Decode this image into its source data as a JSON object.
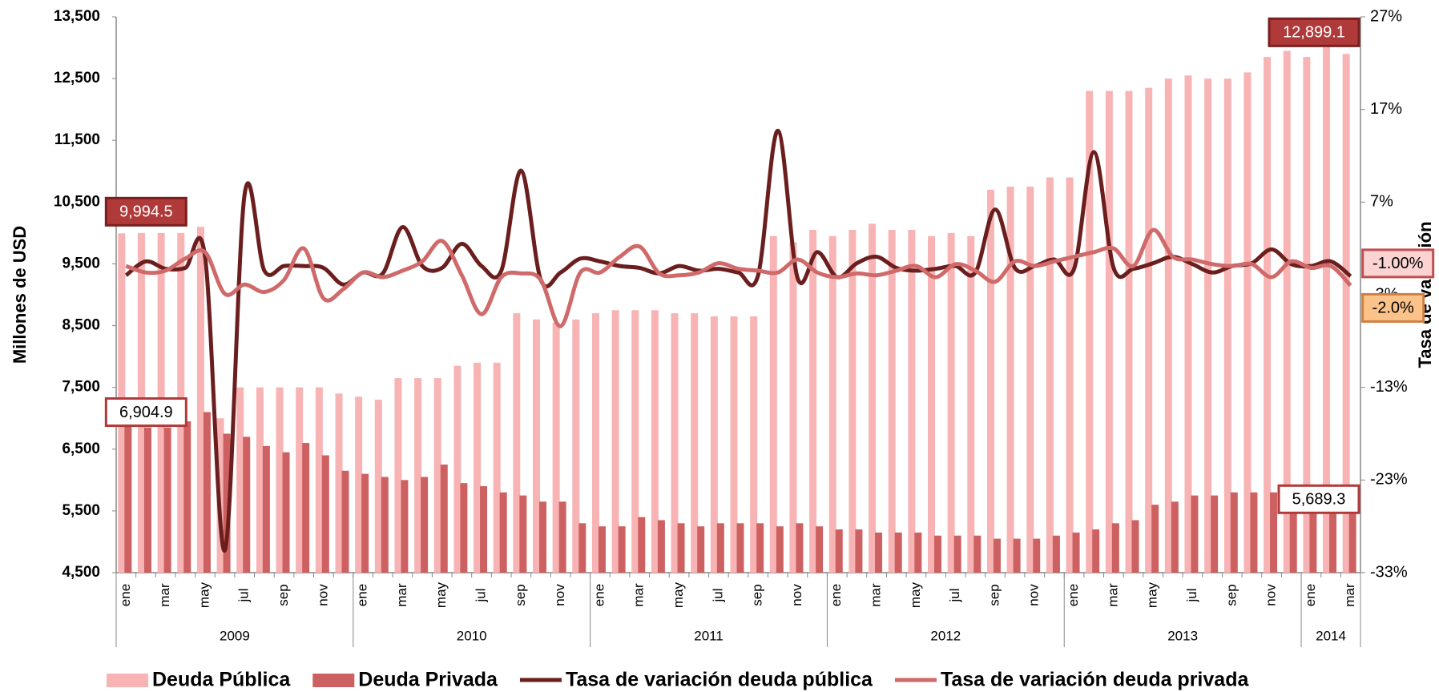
{
  "chart_data": {
    "type": "bar-line",
    "ylabel": "Millones de  USD",
    "y2label": "Tasa de variación",
    "categories": [
      "ene",
      null,
      "mar",
      null,
      "may",
      null,
      "jul",
      null,
      "sep",
      null,
      "nov",
      null,
      "ene",
      null,
      "mar",
      null,
      "may",
      null,
      "jul",
      null,
      "sep",
      null,
      "nov",
      null,
      "ene",
      null,
      "mar",
      null,
      "may",
      null,
      "jul",
      null,
      "sep",
      null,
      "nov",
      null,
      "ene",
      null,
      "mar",
      null,
      "may",
      null,
      "jul",
      null,
      "sep",
      null,
      "nov",
      null,
      "ene",
      null,
      "mar",
      null,
      "may",
      null,
      "jul",
      null,
      "sep",
      null,
      "nov",
      null,
      "ene",
      null,
      "mar"
    ],
    "years": [
      "2009",
      "2010",
      "2011",
      "2012",
      "2013",
      "2014"
    ],
    "ylim": [
      4500,
      13500
    ],
    "yticks": [
      {
        "value": 4500,
        "label": "4,500"
      },
      {
        "value": 5500,
        "label": "5,500"
      },
      {
        "value": 6500,
        "label": "6,500"
      },
      {
        "value": 7500,
        "label": "7,500"
      },
      {
        "value": 8500,
        "label": "8,500"
      },
      {
        "value": 9500,
        "label": "9,500"
      },
      {
        "value": 10500,
        "label": "10,500"
      },
      {
        "value": 11500,
        "label": "11,500"
      },
      {
        "value": 12500,
        "label": "12,500"
      },
      {
        "value": 13500,
        "label": "13,500"
      }
    ],
    "y2lim": [
      -33,
      27
    ],
    "y2ticks": [
      {
        "value": -33,
        "label": "-33%"
      },
      {
        "value": -23,
        "label": "-23%"
      },
      {
        "value": -13,
        "label": "-13%"
      },
      {
        "value": -3,
        "label": "-3%"
      },
      {
        "value": 7,
        "label": "7%"
      },
      {
        "value": 17,
        "label": "17%"
      },
      {
        "value": 27,
        "label": "27%"
      }
    ],
    "series": [
      {
        "name": "Deuda Pública",
        "kind": "bar",
        "color": "#f8b4b4",
        "values": [
          9994.5,
          10000,
          10000,
          10000,
          10100,
          7000,
          7500,
          7500,
          7500,
          7500,
          7500,
          7400,
          7350,
          7300,
          7650,
          7650,
          7650,
          7850,
          7900,
          7900,
          8700,
          8600,
          8550,
          8600,
          8700,
          8750,
          8750,
          8750,
          8700,
          8700,
          8650,
          8650,
          8650,
          9950,
          9850,
          10050,
          9950,
          10050,
          10150,
          10050,
          10050,
          9950,
          10000,
          9950,
          10700,
          10750,
          10750,
          10900,
          10900,
          12300,
          12300,
          12300,
          12350,
          12500,
          12550,
          12500,
          12500,
          12600,
          12850,
          12950,
          12850,
          13050,
          12899.1
        ],
        "value_labels": [
          "9,994.5",
          null,
          null,
          null,
          null,
          null,
          null,
          null,
          null,
          null,
          null,
          null,
          null,
          null,
          null,
          null,
          null,
          null,
          null,
          null,
          null,
          null,
          null,
          null,
          null,
          null,
          null,
          null,
          null,
          null,
          null,
          null,
          null,
          null,
          null,
          null,
          null,
          null,
          null,
          null,
          null,
          null,
          null,
          null,
          null,
          null,
          null,
          null,
          null,
          null,
          null,
          null,
          null,
          null,
          null,
          null,
          null,
          null,
          null,
          null,
          null,
          null,
          "12,899.1"
        ]
      },
      {
        "name": "Deuda Privada",
        "kind": "bar",
        "color": "#cd6161",
        "values": [
          6904.9,
          6850,
          6850,
          6950,
          7100,
          6750,
          6700,
          6550,
          6450,
          6600,
          6400,
          6150,
          6100,
          6050,
          6000,
          6050,
          6250,
          5950,
          5900,
          5800,
          5750,
          5650,
          5650,
          5300,
          5250,
          5250,
          5400,
          5350,
          5300,
          5250,
          5300,
          5300,
          5300,
          5250,
          5300,
          5250,
          5200,
          5200,
          5150,
          5150,
          5150,
          5100,
          5100,
          5100,
          5050,
          5050,
          5050,
          5100,
          5150,
          5200,
          5300,
          5350,
          5600,
          5650,
          5750,
          5750,
          5800,
          5800,
          5800,
          5750,
          5700,
          5750,
          5689.3
        ],
        "value_labels": [
          "6,904.9",
          null,
          null,
          null,
          null,
          null,
          null,
          null,
          null,
          null,
          null,
          null,
          null,
          null,
          null,
          null,
          null,
          null,
          null,
          null,
          null,
          null,
          null,
          null,
          null,
          null,
          null,
          null,
          null,
          null,
          null,
          null,
          null,
          null,
          null,
          null,
          null,
          null,
          null,
          null,
          null,
          null,
          null,
          null,
          null,
          null,
          null,
          null,
          null,
          null,
          null,
          null,
          null,
          null,
          null,
          null,
          null,
          null,
          null,
          null,
          null,
          null,
          "5,689.3"
        ]
      },
      {
        "name": "Tasa de variación deuda pública",
        "kind": "line",
        "axis": "y2",
        "color": "#6b1e1e",
        "values": [
          -0.9,
          0.6,
          -0.2,
          -0.1,
          1.1,
          -30.6,
          7.8,
          -0.4,
          0.1,
          0.1,
          -0.1,
          -1.9,
          -0.6,
          -0.7,
          4.3,
          0.1,
          -0.1,
          2.5,
          0.1,
          -0.4,
          10.4,
          -1.4,
          -0.6,
          0.9,
          0.6,
          0.1,
          -0.1,
          -0.7,
          0.1,
          -0.4,
          -0.2,
          -0.6,
          -0.9,
          14.7,
          -1.2,
          1.6,
          -1.1,
          0.4,
          1.1,
          -0.1,
          -0.4,
          -0.2,
          0.1,
          -0.6,
          6.2,
          -0.1,
          0.1,
          0.8,
          -0.2,
          12.4,
          -0.1,
          -0.2,
          0.4,
          1.1,
          0.3,
          -0.6,
          0.1,
          0.4,
          1.9,
          0.3,
          0.1,
          0.6,
          -1
        ],
        "value_labels": [
          null,
          null,
          null,
          null,
          null,
          null,
          null,
          null,
          null,
          null,
          null,
          null,
          null,
          null,
          null,
          null,
          null,
          null,
          null,
          null,
          null,
          null,
          null,
          null,
          null,
          null,
          null,
          null,
          null,
          null,
          null,
          null,
          null,
          null,
          null,
          null,
          null,
          null,
          null,
          null,
          null,
          null,
          null,
          null,
          null,
          null,
          null,
          null,
          null,
          null,
          null,
          null,
          null,
          null,
          null,
          null,
          null,
          null,
          null,
          null,
          null,
          null,
          "-1.00%"
        ]
      },
      {
        "name": "Tasa de variación deuda privada",
        "kind": "line",
        "axis": "y2",
        "color": "#d06a6a",
        "values": [
          0.1,
          -0.6,
          -0.4,
          0.9,
          1.6,
          -2.9,
          -1.9,
          -2.7,
          -1.4,
          2.0,
          -3.4,
          -2.4,
          -0.6,
          -1.1,
          -0.4,
          0.6,
          2.8,
          -0.9,
          -5.1,
          -1.1,
          -0.7,
          -1.4,
          -6.4,
          -0.6,
          -0.6,
          1.1,
          2.2,
          -0.7,
          -0.9,
          -0.6,
          0.4,
          -0.2,
          -0.4,
          -0.6,
          0.8,
          -0.6,
          -1.1,
          -0.7,
          -0.9,
          -0.4,
          0.1,
          -1.1,
          0.3,
          -0.4,
          -1.6,
          0.6,
          0.1,
          0.6,
          1.1,
          1.6,
          2.0,
          0.1,
          4.0,
          1.1,
          0.8,
          0.3,
          0.1,
          0.3,
          -1.1,
          0.6,
          -0.1,
          0.1,
          -2.0
        ],
        "value_labels": [
          null,
          null,
          null,
          null,
          null,
          null,
          null,
          null,
          null,
          null,
          null,
          null,
          null,
          null,
          null,
          null,
          null,
          null,
          null,
          null,
          null,
          null,
          null,
          null,
          null,
          null,
          null,
          null,
          null,
          null,
          null,
          null,
          null,
          null,
          null,
          null,
          null,
          null,
          null,
          null,
          null,
          null,
          null,
          null,
          null,
          null,
          null,
          null,
          null,
          null,
          null,
          null,
          null,
          null,
          null,
          null,
          null,
          null,
          null,
          null,
          null,
          null,
          "-2.0%"
        ]
      }
    ]
  }
}
